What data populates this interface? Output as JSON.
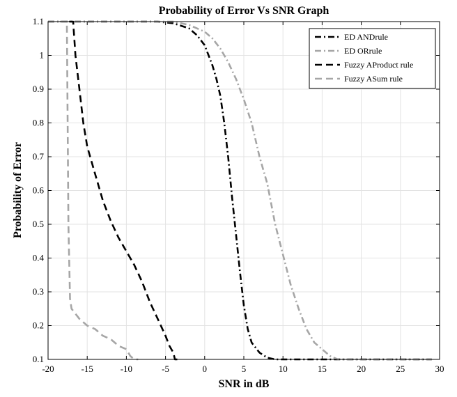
{
  "chart_data": {
    "type": "line",
    "title": "Probability of Error Vs SNR Graph",
    "xlabel": "SNR in dB",
    "ylabel": "Probability of Error",
    "xlim": [
      -20,
      30
    ],
    "ylim": [
      0.1,
      1.1
    ],
    "xticks": [
      "-20",
      "-15",
      "-10",
      "-5",
      "0",
      "5",
      "10",
      "15",
      "20",
      "25",
      "30"
    ],
    "yticks": [
      "0.1",
      "0.2",
      "0.3",
      "0.4",
      "0.5",
      "0.6",
      "0.7",
      "0.8",
      "0.9",
      "1",
      "1.1"
    ],
    "grid": true,
    "legend_position": "top-right",
    "series": [
      {
        "name": "ED ANDrule",
        "color": "#000000",
        "dash": "dashdot",
        "x": [
          -20,
          -6,
          -4,
          -2,
          -1,
          0,
          0.5,
          1,
          1.5,
          2,
          2.5,
          3,
          3.5,
          4,
          4.5,
          5,
          5.5,
          6,
          7,
          8,
          9,
          10,
          12,
          15,
          20,
          25,
          29
        ],
        "y": [
          1.1,
          1.1,
          1.095,
          1.08,
          1.06,
          1.03,
          1.0,
          0.97,
          0.93,
          0.88,
          0.8,
          0.7,
          0.58,
          0.47,
          0.36,
          0.26,
          0.19,
          0.15,
          0.12,
          0.105,
          0.1,
          0.1,
          0.1,
          0.1,
          0.1,
          0.1,
          0.1
        ]
      },
      {
        "name": "ED ORrule",
        "color": "#a6a6a6",
        "dash": "dashdot",
        "x": [
          -20,
          -4,
          -2,
          0,
          1,
          2,
          3,
          4,
          5,
          6,
          7,
          8,
          9,
          10,
          11,
          12,
          13,
          14,
          15,
          16,
          17,
          18,
          20,
          25,
          29
        ],
        "y": [
          1.1,
          1.1,
          1.09,
          1.07,
          1.05,
          1.02,
          0.98,
          0.93,
          0.87,
          0.8,
          0.7,
          0.62,
          0.5,
          0.41,
          0.32,
          0.25,
          0.19,
          0.15,
          0.13,
          0.11,
          0.1,
          0.1,
          0.1,
          0.1,
          0.1
        ]
      },
      {
        "name": "Fuzzy AProduct rule",
        "color": "#000000",
        "dash": "dash",
        "x": [
          -17.3,
          -16.8,
          -16.5,
          -16,
          -15.5,
          -15,
          -14,
          -13,
          -12,
          -11,
          -10,
          -9,
          -8,
          -7,
          -6,
          -5,
          -4.5,
          -4,
          -3.8,
          -3.5
        ],
        "y": [
          1.1,
          1.1,
          1.0,
          0.9,
          0.8,
          0.73,
          0.65,
          0.57,
          0.51,
          0.46,
          0.42,
          0.38,
          0.33,
          0.27,
          0.22,
          0.17,
          0.14,
          0.12,
          0.1,
          0.1
        ]
      },
      {
        "name": "Fuzzy ASum rule",
        "color": "#a6a6a6",
        "dash": "dash",
        "x": [
          -18.5,
          -18,
          -17.6,
          -17.5,
          -17.4,
          -17.2,
          -17,
          -16,
          -15,
          -14,
          -13,
          -12,
          -11,
          -10,
          -9.5,
          -9,
          -8.5
        ],
        "y": [
          1.1,
          1.1,
          1.1,
          0.8,
          0.5,
          0.28,
          0.25,
          0.22,
          0.2,
          0.19,
          0.17,
          0.16,
          0.14,
          0.13,
          0.11,
          0.1,
          0.1
        ]
      }
    ]
  }
}
